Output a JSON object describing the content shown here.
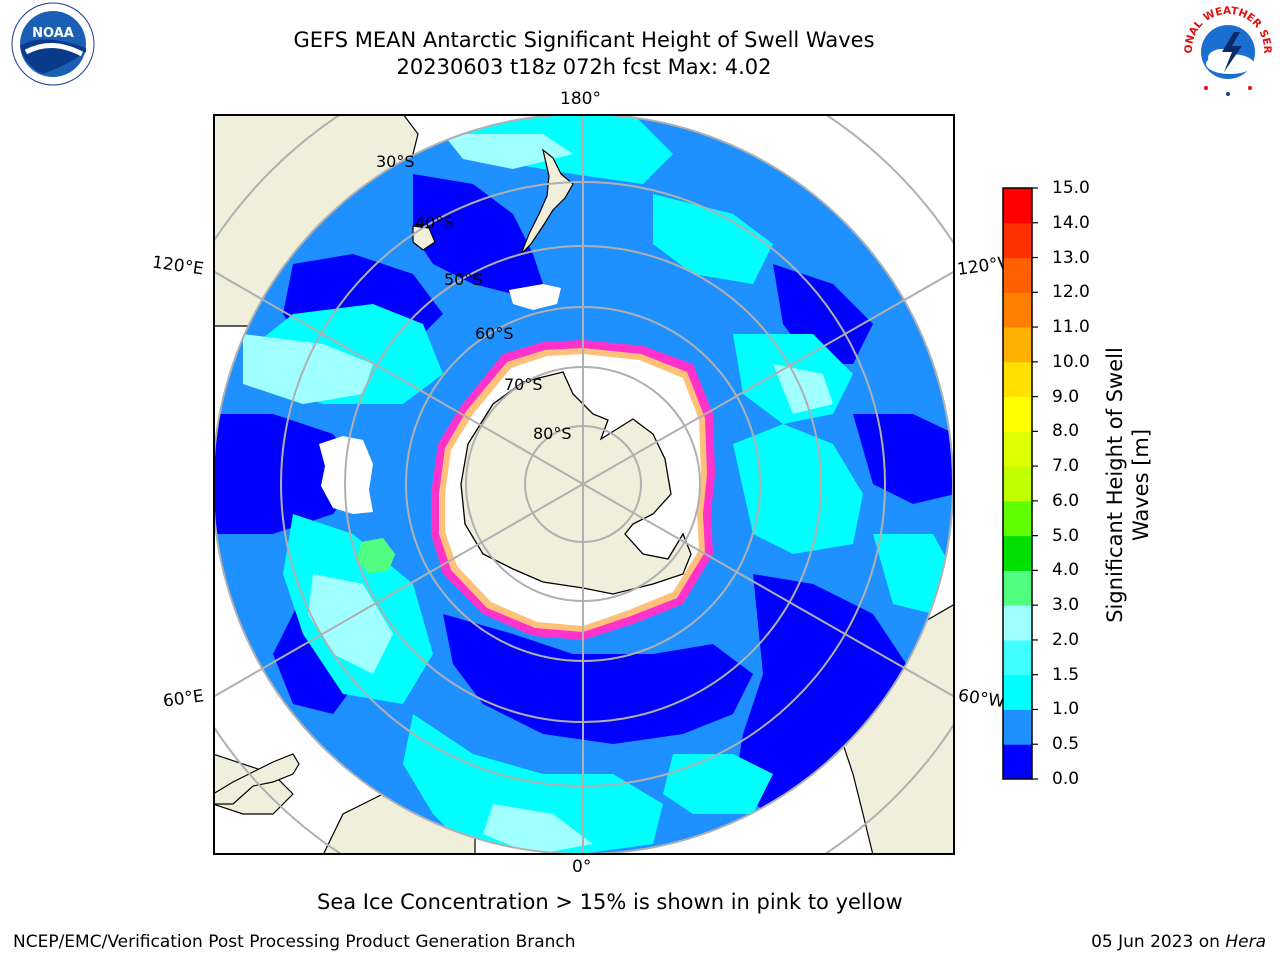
{
  "title": {
    "line1": "GEFS MEAN Antarctic Significant Height of Swell Waves",
    "line2": "20230603 t18z 072h fcst   Max: 4.02"
  },
  "map": {
    "projection": "south-polar-stereographic",
    "longitude_labels": {
      "top": "180°",
      "bottom": "0°",
      "left_upper": "120°E",
      "left_lower": "60°E",
      "right_upper": "120°W",
      "right_lower": "60°W"
    },
    "latitude_labels": [
      "30°S",
      "40°S",
      "50°S",
      "60°S",
      "70°S",
      "80°S"
    ],
    "colors": {
      "land": "#efefdc",
      "ocean_low": "#0000ff",
      "ocean_mid": "#1e90ff",
      "ocean_high": "#00ffff",
      "ice": "#ffffff",
      "ice_edge": "#ff33cc",
      "grid": "#b0b0b0"
    }
  },
  "colorbar": {
    "label": "Significant Height of Swell Waves [m]",
    "label_line1": "Significant Height of Swell",
    "label_line2": "Waves [m]",
    "ticks": [
      "0.0",
      "0.5",
      "1.0",
      "1.5",
      "2.0",
      "3.0",
      "4.0",
      "5.0",
      "6.0",
      "7.0",
      "8.0",
      "9.0",
      "10.0",
      "11.0",
      "12.0",
      "13.0",
      "14.0",
      "15.0"
    ],
    "colors": [
      "#0000ff",
      "#1e90ff",
      "#00ffff",
      "#40ffff",
      "#a0ffff",
      "#50ff80",
      "#00e000",
      "#60ff00",
      "#c0ff00",
      "#e0ff00",
      "#ffff00",
      "#ffe000",
      "#ffb000",
      "#ff8000",
      "#ff6000",
      "#ff3000",
      "#ff0000"
    ]
  },
  "caption": "Sea Ice Concentration > 15% is shown in pink to yellow",
  "footer": {
    "left": "NCEP/EMC/Verification Post Processing Product Generation Branch",
    "right_prefix": "05 Jun 2023 on ",
    "right_host": "Hera"
  },
  "logos": {
    "left": {
      "icon": "noaa-logo-icon",
      "text": "NOAA"
    },
    "right": {
      "icon": "nws-logo-icon",
      "text": "NATIONAL WEATHER SERVICE"
    }
  }
}
